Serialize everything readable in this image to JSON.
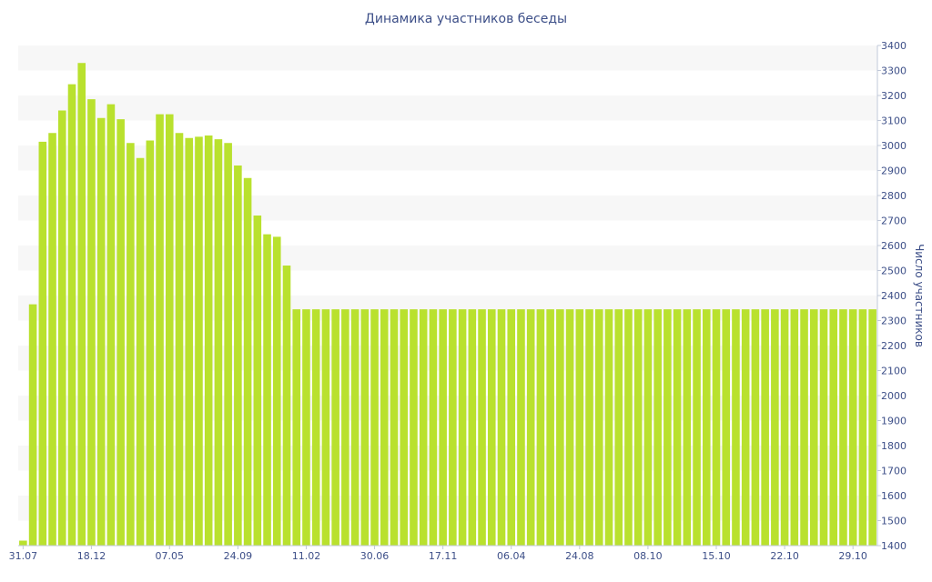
{
  "chart_data": {
    "type": "bar",
    "title": "Динамика участников беседы",
    "ylabel": "Число участников",
    "xlabel": "",
    "ylim": [
      1400,
      3400
    ],
    "y_ticks": [
      1400,
      1500,
      1600,
      1700,
      1800,
      1900,
      2000,
      2100,
      2200,
      2300,
      2400,
      2500,
      2600,
      2700,
      2800,
      2900,
      3000,
      3100,
      3200,
      3300,
      3400
    ],
    "x_tick_labels": [
      {
        "label": "31.07",
        "index": 0
      },
      {
        "label": "18.12",
        "index": 7
      },
      {
        "label": "07.05",
        "index": 15
      },
      {
        "label": "24.09",
        "index": 22
      },
      {
        "label": "11.02",
        "index": 29
      },
      {
        "label": "30.06",
        "index": 36
      },
      {
        "label": "17.11",
        "index": 43
      },
      {
        "label": "06.04",
        "index": 50
      },
      {
        "label": "24.08",
        "index": 57
      },
      {
        "label": "08.10",
        "index": 64
      },
      {
        "label": "15.10",
        "index": 71
      },
      {
        "label": "22.10",
        "index": 78
      },
      {
        "label": "29.10",
        "index": 85
      }
    ],
    "grid": "alternating horizontal bands",
    "y_axis_position": "right",
    "bar_color": "#b9e12e",
    "band_color": "#f7f7f7",
    "values": [
      1420,
      2365,
      3015,
      3050,
      3140,
      3245,
      3330,
      3185,
      3110,
      3165,
      3105,
      3010,
      2950,
      3020,
      3125,
      3125,
      3050,
      3030,
      3035,
      3040,
      3025,
      3010,
      2920,
      2870,
      2720,
      2645,
      2635,
      2520,
      2345,
      2345,
      2345,
      2345,
      2345,
      2345,
      2345,
      2345,
      2345,
      2345,
      2345,
      2345,
      2345,
      2345,
      2345,
      2345,
      2345,
      2345,
      2345,
      2345,
      2345,
      2345,
      2345,
      2345,
      2345,
      2345,
      2345,
      2345,
      2345,
      2345,
      2345,
      2345,
      2345,
      2345,
      2345,
      2345,
      2345,
      2345,
      2345,
      2345,
      2345,
      2345,
      2345,
      2345,
      2345,
      2345,
      2345,
      2345,
      2345,
      2345,
      2345,
      2345,
      2345,
      2345,
      2345,
      2345,
      2345,
      2345,
      2345,
      2345
    ]
  }
}
